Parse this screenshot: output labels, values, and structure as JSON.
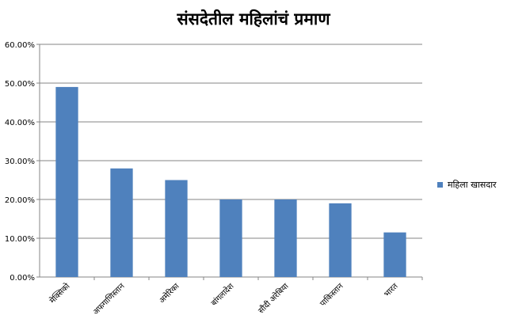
{
  "chart_data": {
    "type": "bar",
    "title": "संसदेतील महिलांचं प्रमाण",
    "categories": [
      "मेक्सिको",
      "अफगाणिस्तान",
      "अमेरिका",
      "बांगलादेश",
      "सौदी अरेबिया",
      "पाकिस्तान",
      "भारत"
    ],
    "series": [
      {
        "name": "महिला खासदार",
        "values": [
          49,
          28,
          25,
          20,
          20,
          19,
          11.5
        ]
      }
    ],
    "ylim": [
      0,
      60
    ],
    "yticks": [
      "0.00%",
      "10.00%",
      "20.00%",
      "30.00%",
      "40.00%",
      "50.00%",
      "60.00%"
    ],
    "grid": true,
    "legend_position": "right",
    "colors": {
      "bar": "#4f81bd",
      "grid": "#868686",
      "axis": "#868686"
    }
  }
}
